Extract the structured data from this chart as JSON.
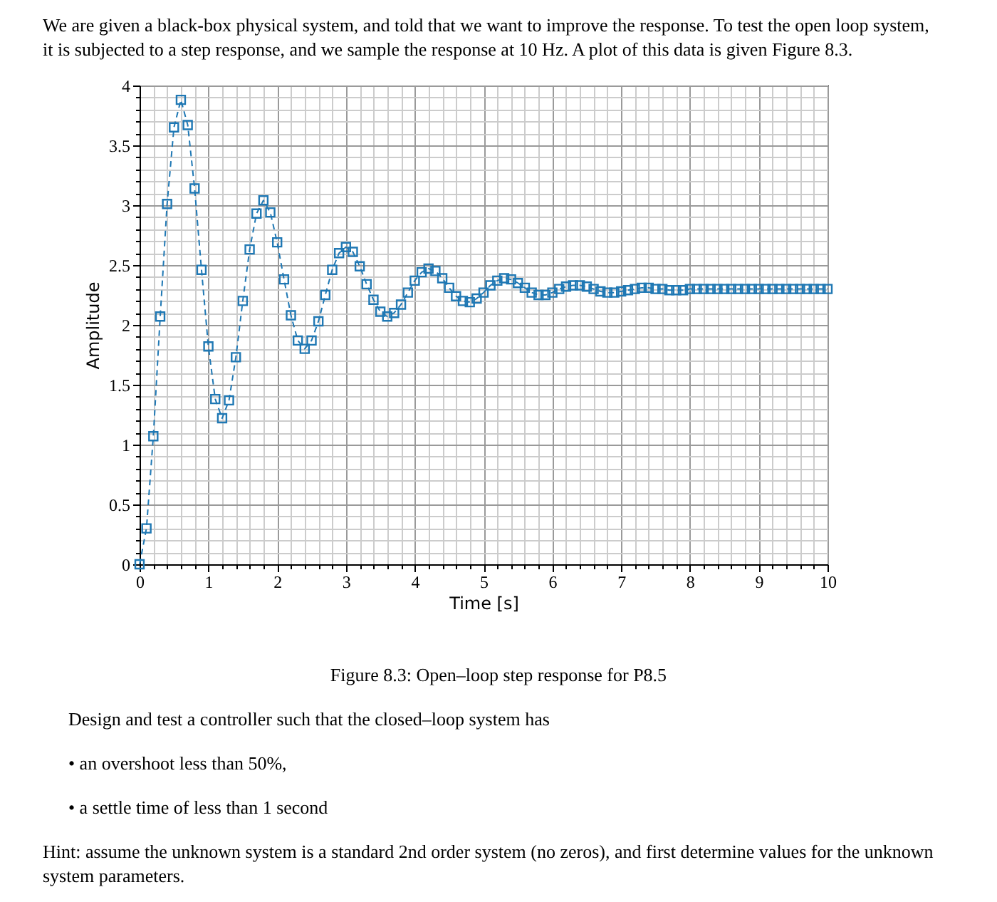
{
  "chart_data": {
    "type": "line",
    "title": "Figure 8.3: Open–loop step response for P8.5",
    "xlabel": "Time [s]",
    "ylabel": "Amplitude",
    "annotations": [
      "We are given a black-box physical system, and told that we want to improve the response. To test the open loop system, it is subjected to a step response, and we sample the response at 10 Hz. A plot of this data is given Figure 8.3.",
      "Design and test a controller such that the closed–loop system has",
      "• an overshoot less than 50%,",
      "• a settle time of less than 1 second",
      "Hint: assume the unknown system is a standard 2nd order system (no zeros), and first determine values for the unknown system parameters."
    ],
    "x": [
      0,
      0.1,
      0.2,
      0.3,
      0.4,
      0.5,
      0.6,
      0.7,
      0.8,
      0.9,
      1,
      1.1,
      1.2,
      1.3,
      1.4,
      1.5,
      1.6,
      1.7,
      1.8,
      1.9,
      2,
      2.1,
      2.2,
      2.3,
      2.4,
      2.5,
      2.6,
      2.7,
      2.8,
      2.9,
      3,
      3.1,
      3.2,
      3.3,
      3.4,
      3.5,
      3.6,
      3.7,
      3.8,
      3.9,
      4,
      4.1,
      4.2,
      4.3,
      4.4,
      4.5,
      4.6,
      4.7,
      4.8,
      4.9,
      5,
      5.1,
      5.2,
      5.3,
      5.4,
      5.5,
      5.6,
      5.7,
      5.8,
      5.9,
      6,
      6.1,
      6.2,
      6.3,
      6.4,
      6.5,
      6.6,
      6.7,
      6.8,
      6.9,
      7,
      7.1,
      7.2,
      7.3,
      7.4,
      7.5,
      7.6,
      7.7,
      7.8,
      7.9,
      8,
      8.1,
      8.2,
      8.3,
      8.4,
      8.5,
      8.6,
      8.7,
      8.8,
      8.9,
      9,
      9.1,
      9.2,
      9.3,
      9.4,
      9.5,
      9.6,
      9.7,
      9.8,
      9.9,
      10
    ],
    "series": [
      {
        "color": "#1f78b4",
        "values": [
          0,
          0.3,
          1.07,
          2.07,
          3.01,
          3.65,
          3.88,
          3.67,
          3.14,
          2.46,
          1.82,
          1.38,
          1.22,
          1.37,
          1.73,
          2.2,
          2.63,
          2.93,
          3.04,
          2.94,
          2.69,
          2.38,
          2.08,
          1.87,
          1.8,
          1.87,
          2.03,
          2.25,
          2.46,
          2.6,
          2.65,
          2.61,
          2.49,
          2.34,
          2.21,
          2.11,
          2.07,
          2.1,
          2.17,
          2.27,
          2.37,
          2.44,
          2.47,
          2.45,
          2.39,
          2.31,
          2.24,
          2.2,
          2.19,
          2.22,
          2.27,
          2.33,
          2.37,
          2.39,
          2.38,
          2.35,
          2.31,
          2.27,
          2.25,
          2.25,
          2.27,
          2.3,
          2.32,
          2.33,
          2.33,
          2.32,
          2.3,
          2.28,
          2.27,
          2.27,
          2.28,
          2.29,
          2.3,
          2.31,
          2.31,
          2.3,
          2.3,
          2.29,
          2.29,
          2.29,
          2.3,
          2.3,
          2.3,
          2.3,
          2.3,
          2.3,
          2.3,
          2.3,
          2.3,
          2.3,
          2.3,
          2.3,
          2.3,
          2.3,
          2.3,
          2.3,
          2.3,
          2.3,
          2.3,
          2.3,
          2.3
        ]
      }
    ],
    "xlim": [
      0,
      10
    ],
    "ylim": [
      0,
      4
    ],
    "xticks": [
      0,
      {
        "value": 0.2,
        "label": null
      },
      {
        "value": 0.4,
        "label": null
      },
      {
        "value": 0.6,
        "label": null
      },
      {
        "value": 0.8,
        "label": null
      },
      1,
      {
        "value": 1.2,
        "label": null
      },
      {
        "value": 1.4,
        "label": null
      },
      {
        "value": 1.6,
        "label": null
      },
      {
        "value": 1.8,
        "label": null
      },
      2,
      {
        "value": 2.2,
        "label": null
      },
      {
        "value": 2.4,
        "label": null
      },
      {
        "value": 2.6,
        "label": null
      },
      {
        "value": 2.8,
        "label": null
      },
      3,
      {
        "value": 3.2,
        "label": null
      },
      {
        "value": 3.4,
        "label": null
      },
      {
        "value": 3.6,
        "label": null
      },
      {
        "value": 3.8,
        "label": null
      },
      4,
      {
        "value": 4.2,
        "label": null
      },
      {
        "value": 4.4,
        "label": null
      },
      {
        "value": 4.6,
        "label": null
      },
      {
        "value": 4.8,
        "label": null
      },
      5,
      {
        "value": 5.2,
        "label": null
      },
      {
        "value": 5.4,
        "label": null
      },
      {
        "value": 5.6,
        "label": null
      },
      {
        "value": 5.8,
        "label": null
      },
      6,
      {
        "value": 6.2,
        "label": null
      },
      {
        "value": 6.4,
        "label": null
      },
      {
        "value": 6.6,
        "label": null
      },
      {
        "value": 6.8,
        "label": null
      },
      7,
      {
        "value": 7.2,
        "label": null
      },
      {
        "value": 7.4,
        "label": null
      },
      {
        "value": 7.6,
        "label": null
      },
      {
        "value": 7.8,
        "label": null
      },
      8,
      {
        "value": 8.2,
        "label": null
      },
      {
        "value": 8.4,
        "label": null
      },
      {
        "value": 8.6,
        "label": null
      },
      {
        "value": 8.8,
        "label": null
      },
      9,
      {
        "value": 9.2,
        "label": null
      },
      {
        "value": 9.4,
        "label": null
      },
      {
        "value": 9.6,
        "label": null
      },
      {
        "value": 9.8,
        "label": null
      },
      10
    ],
    "yticks": [
      0,
      {
        "value": 0.1,
        "label": null
      },
      {
        "value": 0.2,
        "label": null
      },
      {
        "value": 0.3,
        "label": null
      },
      {
        "value": 0.4,
        "label": null
      },
      0.5,
      {
        "value": 0.6,
        "label": null
      },
      {
        "value": 0.7,
        "label": null
      },
      {
        "value": 0.8,
        "label": null
      },
      {
        "value": 0.9,
        "label": null
      },
      1,
      {
        "value": 1.1,
        "label": null
      },
      {
        "value": 1.2,
        "label": null
      },
      {
        "value": 1.3,
        "label": null
      },
      {
        "value": 1.4,
        "label": null
      },
      1.5,
      {
        "value": 1.6,
        "label": null
      },
      {
        "value": 1.7,
        "label": null
      },
      {
        "value": 1.8,
        "label": null
      },
      {
        "value": 1.9,
        "label": null
      },
      2,
      {
        "value": 2.1,
        "label": null
      },
      {
        "value": 2.2,
        "label": null
      },
      {
        "value": 2.3,
        "label": null
      },
      {
        "value": 2.4,
        "label": null
      },
      2.5,
      {
        "value": 2.6,
        "label": null
      },
      {
        "value": 2.7,
        "label": null
      },
      {
        "value": 2.8,
        "label": null
      },
      {
        "value": 2.9,
        "label": null
      },
      3,
      {
        "value": 3.1,
        "label": null
      },
      {
        "value": 3.2,
        "label": null
      },
      {
        "value": 3.3,
        "label": null
      },
      {
        "value": 3.4,
        "label": null
      },
      3.5,
      {
        "value": 3.6,
        "label": null
      },
      {
        "value": 3.7,
        "label": null
      },
      {
        "value": 3.8,
        "label": null
      },
      {
        "value": 3.9,
        "label": null
      },
      4
    ],
    "grid": true,
    "marker": "square",
    "line_style": "dashed"
  }
}
